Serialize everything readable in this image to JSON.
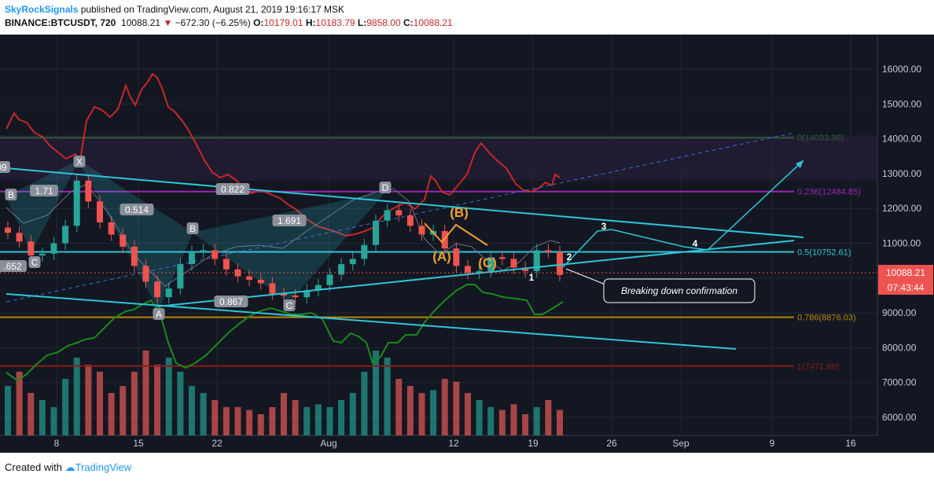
{
  "header": {
    "publisher": "SkyRockSignals",
    "published_text": " published on TradingView.com, August 21, 2019 19:16:17 MSK",
    "symbol": "BINANCE:BTCUSDT, 720",
    "last": "10088.21",
    "change": "−672.30 (−6.25%)",
    "o_label": "O:",
    "o": "10179.01",
    "h_label": "H:",
    "h": "10183.79",
    "l_label": "L:",
    "l": "9858.00",
    "c_label": "C:",
    "c": "10088.21"
  },
  "footer": {
    "created_with": "Created with",
    "brand": "TradingView"
  },
  "colors": {
    "background": "#131722",
    "up": "#26a69a",
    "down": "#ef5350",
    "cyan": "#2dc6d6",
    "orange": "#f0a030",
    "red_line": "#c62828",
    "green_line": "#1b8a1b"
  },
  "chart_data": {
    "type": "candlestick",
    "y_axis": {
      "ticks": [
        "16000.00",
        "15000.00",
        "14000.00",
        "13000.00",
        "12000.00",
        "11000.00",
        "10000.00",
        "9000.00",
        "8000.00",
        "7000.00",
        "6000.00"
      ],
      "tick_values": [
        16000,
        15000,
        14000,
        13000,
        12000,
        11000,
        10000,
        9000,
        8000,
        7000,
        6000
      ],
      "range": [
        5600,
        17000
      ]
    },
    "x_axis": {
      "ticks": [
        "8",
        "15",
        "22",
        "Aug",
        "12",
        "19",
        "26",
        "Sep",
        "9",
        "16"
      ]
    },
    "price_label": "10088.21",
    "countdown": "07:43:44",
    "fib_levels": [
      {
        "label": "0(14033.36)",
        "value": 14033.36,
        "color": "#2e9e2e"
      },
      {
        "label": "0.236(12484.85)",
        "value": 12484.85,
        "color": "#9c27b0"
      },
      {
        "label": "0.5(10752.61)",
        "value": 10752.61,
        "color": "#2dc6d6"
      },
      {
        "label": "0.786(8876.03)",
        "value": 8876.03,
        "color": "#b8860b"
      },
      {
        "label": "1(7471.86)",
        "value": 7471.86,
        "color": "#8b1a1a"
      }
    ],
    "harmonic_labels": [
      "09",
      "B",
      "C",
      "1.71",
      "X",
      "0.514",
      "A",
      "B",
      "0.822",
      "0.867",
      "C",
      "1.691",
      "D",
      ".652"
    ],
    "wave_labels": [
      "(A)",
      "(B)",
      "(C)",
      "1",
      "2",
      "3",
      "4"
    ],
    "annotation": "Breaking down confirmation",
    "candles_approx_close": [
      11300,
      11050,
      10650,
      10700,
      11000,
      11500,
      12800,
      12200,
      11600,
      11250,
      10900,
      10350,
      9900,
      9450,
      9700,
      10400,
      10750,
      10800,
      10550,
      10250,
      10050,
      9950,
      9850,
      9550,
      9500,
      9450,
      9650,
      9800,
      10100,
      10400,
      10550,
      10950,
      11650,
      11950,
      11800,
      11500,
      11250,
      11350,
      10850,
      10350,
      10150,
      10200,
      10600,
      10550,
      10300,
      10200,
      10800,
      10750,
      10088
    ],
    "volume_relative": [
      0.35,
      0.45,
      0.3,
      0.25,
      0.2,
      0.4,
      0.55,
      0.5,
      0.45,
      0.3,
      0.35,
      0.45,
      0.6,
      0.5,
      0.55,
      0.45,
      0.35,
      0.3,
      0.25,
      0.2,
      0.2,
      0.18,
      0.15,
      0.2,
      0.3,
      0.25,
      0.2,
      0.22,
      0.2,
      0.25,
      0.3,
      0.45,
      0.6,
      0.55,
      0.4,
      0.35,
      0.3,
      0.32,
      0.4,
      0.38,
      0.3,
      0.25,
      0.2,
      0.18,
      0.22,
      0.15,
      0.2,
      0.25,
      0.18
    ]
  }
}
